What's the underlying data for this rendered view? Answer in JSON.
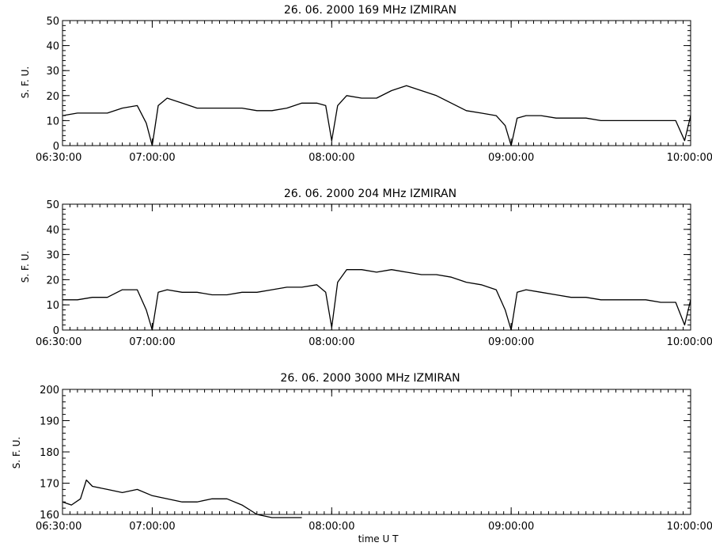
{
  "chart_data": [
    {
      "type": "line",
      "title": "26.  06.  2000    169 MHz    IZMIRAN",
      "ylabel": "S. F. U.",
      "xlabel": "",
      "ylim": [
        0,
        50
      ],
      "yticks": [
        0,
        10,
        20,
        30,
        40,
        50
      ],
      "xlim": [
        "06:30:00",
        "10:00:00"
      ],
      "xticks": [
        "06:30:00",
        "07:00:00",
        "08:00:00",
        "09:00:00",
        "10:00:00"
      ],
      "series": [
        {
          "x": [
            "06:30:00",
            "06:35:00",
            "06:40:00",
            "06:45:00",
            "06:50:00",
            "06:55:00",
            "06:58:00",
            "07:00:00",
            "07:02:00",
            "07:05:00",
            "07:10:00",
            "07:15:00",
            "07:20:00",
            "07:25:00",
            "07:30:00",
            "07:35:00",
            "07:40:00",
            "07:45:00",
            "07:50:00",
            "07:55:00",
            "07:58:00",
            "08:00:00",
            "08:02:00",
            "08:05:00",
            "08:10:00",
            "08:15:00",
            "08:20:00",
            "08:25:00",
            "08:30:00",
            "08:35:00",
            "08:40:00",
            "08:45:00",
            "08:50:00",
            "08:55:00",
            "08:58:00",
            "09:00:00",
            "09:02:00",
            "09:05:00",
            "09:10:00",
            "09:15:00",
            "09:20:00",
            "09:25:00",
            "09:30:00",
            "09:35:00",
            "09:40:00",
            "09:45:00",
            "09:50:00",
            "09:55:00",
            "09:58:00",
            "10:00:00"
          ],
          "values": [
            12,
            13,
            13,
            13,
            15,
            16,
            9,
            0,
            16,
            19,
            17,
            15,
            15,
            15,
            15,
            14,
            14,
            15,
            17,
            17,
            16,
            2,
            16,
            20,
            19,
            19,
            22,
            24,
            22,
            20,
            17,
            14,
            13,
            12,
            8,
            0,
            11,
            12,
            12,
            11,
            11,
            11,
            10,
            10,
            10,
            10,
            10,
            10,
            2,
            12
          ]
        }
      ]
    },
    {
      "type": "line",
      "title": "26.  06.  2000    204 MHz    IZMIRAN",
      "ylabel": "S. F. U.",
      "xlabel": "",
      "ylim": [
        0,
        50
      ],
      "yticks": [
        0,
        10,
        20,
        30,
        40,
        50
      ],
      "xlim": [
        "06:30:00",
        "10:00:00"
      ],
      "xticks": [
        "06:30:00",
        "07:00:00",
        "08:00:00",
        "09:00:00",
        "10:00:00"
      ],
      "series": [
        {
          "x": [
            "06:30:00",
            "06:35:00",
            "06:40:00",
            "06:45:00",
            "06:50:00",
            "06:55:00",
            "06:58:00",
            "07:00:00",
            "07:02:00",
            "07:05:00",
            "07:10:00",
            "07:15:00",
            "07:20:00",
            "07:25:00",
            "07:30:00",
            "07:35:00",
            "07:40:00",
            "07:45:00",
            "07:50:00",
            "07:55:00",
            "07:58:00",
            "08:00:00",
            "08:02:00",
            "08:05:00",
            "08:10:00",
            "08:15:00",
            "08:20:00",
            "08:25:00",
            "08:30:00",
            "08:35:00",
            "08:40:00",
            "08:45:00",
            "08:50:00",
            "08:55:00",
            "08:58:00",
            "09:00:00",
            "09:02:00",
            "09:05:00",
            "09:10:00",
            "09:15:00",
            "09:20:00",
            "09:25:00",
            "09:30:00",
            "09:35:00",
            "09:40:00",
            "09:45:00",
            "09:50:00",
            "09:55:00",
            "09:58:00",
            "10:00:00"
          ],
          "values": [
            12,
            12,
            13,
            13,
            16,
            16,
            8,
            0,
            15,
            16,
            15,
            15,
            14,
            14,
            15,
            15,
            16,
            17,
            17,
            18,
            15,
            1,
            19,
            24,
            24,
            23,
            24,
            23,
            22,
            22,
            21,
            19,
            18,
            16,
            8,
            0,
            15,
            16,
            15,
            14,
            13,
            13,
            12,
            12,
            12,
            12,
            11,
            11,
            2,
            12
          ]
        }
      ]
    },
    {
      "type": "line",
      "title": "26.  06.  2000    3000 MHz    IZMIRAN",
      "ylabel": "S. F. U.",
      "xlabel": "time   U T",
      "ylim": [
        160,
        200
      ],
      "yticks": [
        160,
        170,
        180,
        190,
        200
      ],
      "xlim": [
        "06:30:00",
        "10:00:00"
      ],
      "xticks": [
        "06:30:00",
        "07:00:00",
        "08:00:00",
        "09:00:00",
        "10:00:00"
      ],
      "series": [
        {
          "x": [
            "06:30:00",
            "06:33:00",
            "06:36:00",
            "06:38:00",
            "06:40:00",
            "06:45:00",
            "06:50:00",
            "06:55:00",
            "07:00:00",
            "07:05:00",
            "07:10:00",
            "07:15:00",
            "07:20:00",
            "07:25:00",
            "07:30:00",
            "07:35:00",
            "07:40:00",
            "07:42:00",
            "07:45:00",
            "07:48:00",
            "07:50:00"
          ],
          "values": [
            164,
            163,
            165,
            171,
            169,
            168,
            167,
            168,
            166,
            165,
            164,
            164,
            165,
            165,
            163,
            160,
            159,
            159,
            159,
            159,
            159
          ]
        }
      ]
    }
  ]
}
